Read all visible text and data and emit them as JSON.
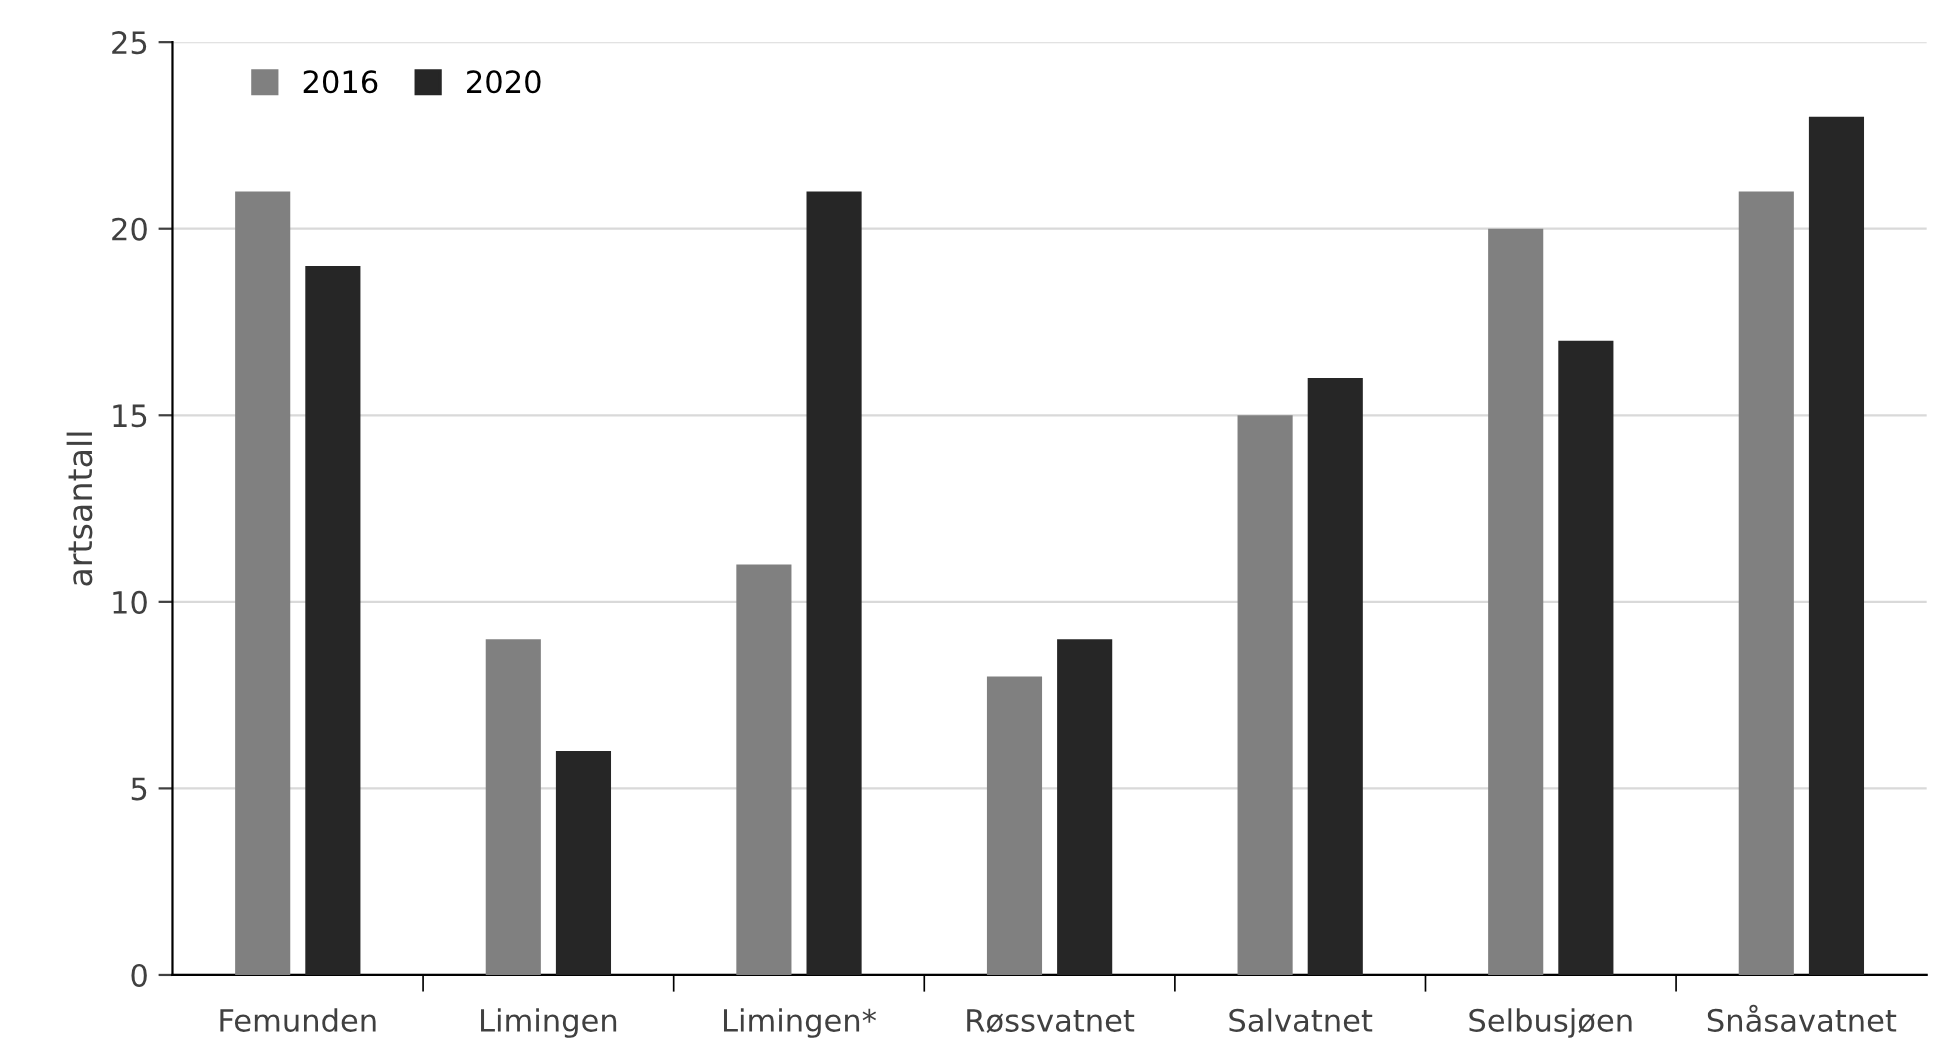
{
  "chart_data": {
    "type": "bar",
    "ylabel": "artsantall",
    "categories": [
      "Femunden",
      "Limingen",
      "Limingen*",
      "Røssvatnet",
      "Salvatnet",
      "Selbusjøen",
      "Snåsavatnet"
    ],
    "series": [
      {
        "name": "2016",
        "color": "#808080",
        "values": [
          21,
          9,
          11,
          8,
          15,
          20,
          21
        ]
      },
      {
        "name": "2020",
        "color": "#262626",
        "values": [
          19,
          6,
          21,
          9,
          16,
          17,
          23
        ]
      }
    ],
    "ylim": [
      0,
      25
    ],
    "yticks": [
      0,
      5,
      10,
      15,
      20,
      25
    ],
    "grid": "y",
    "legend": "top left"
  }
}
